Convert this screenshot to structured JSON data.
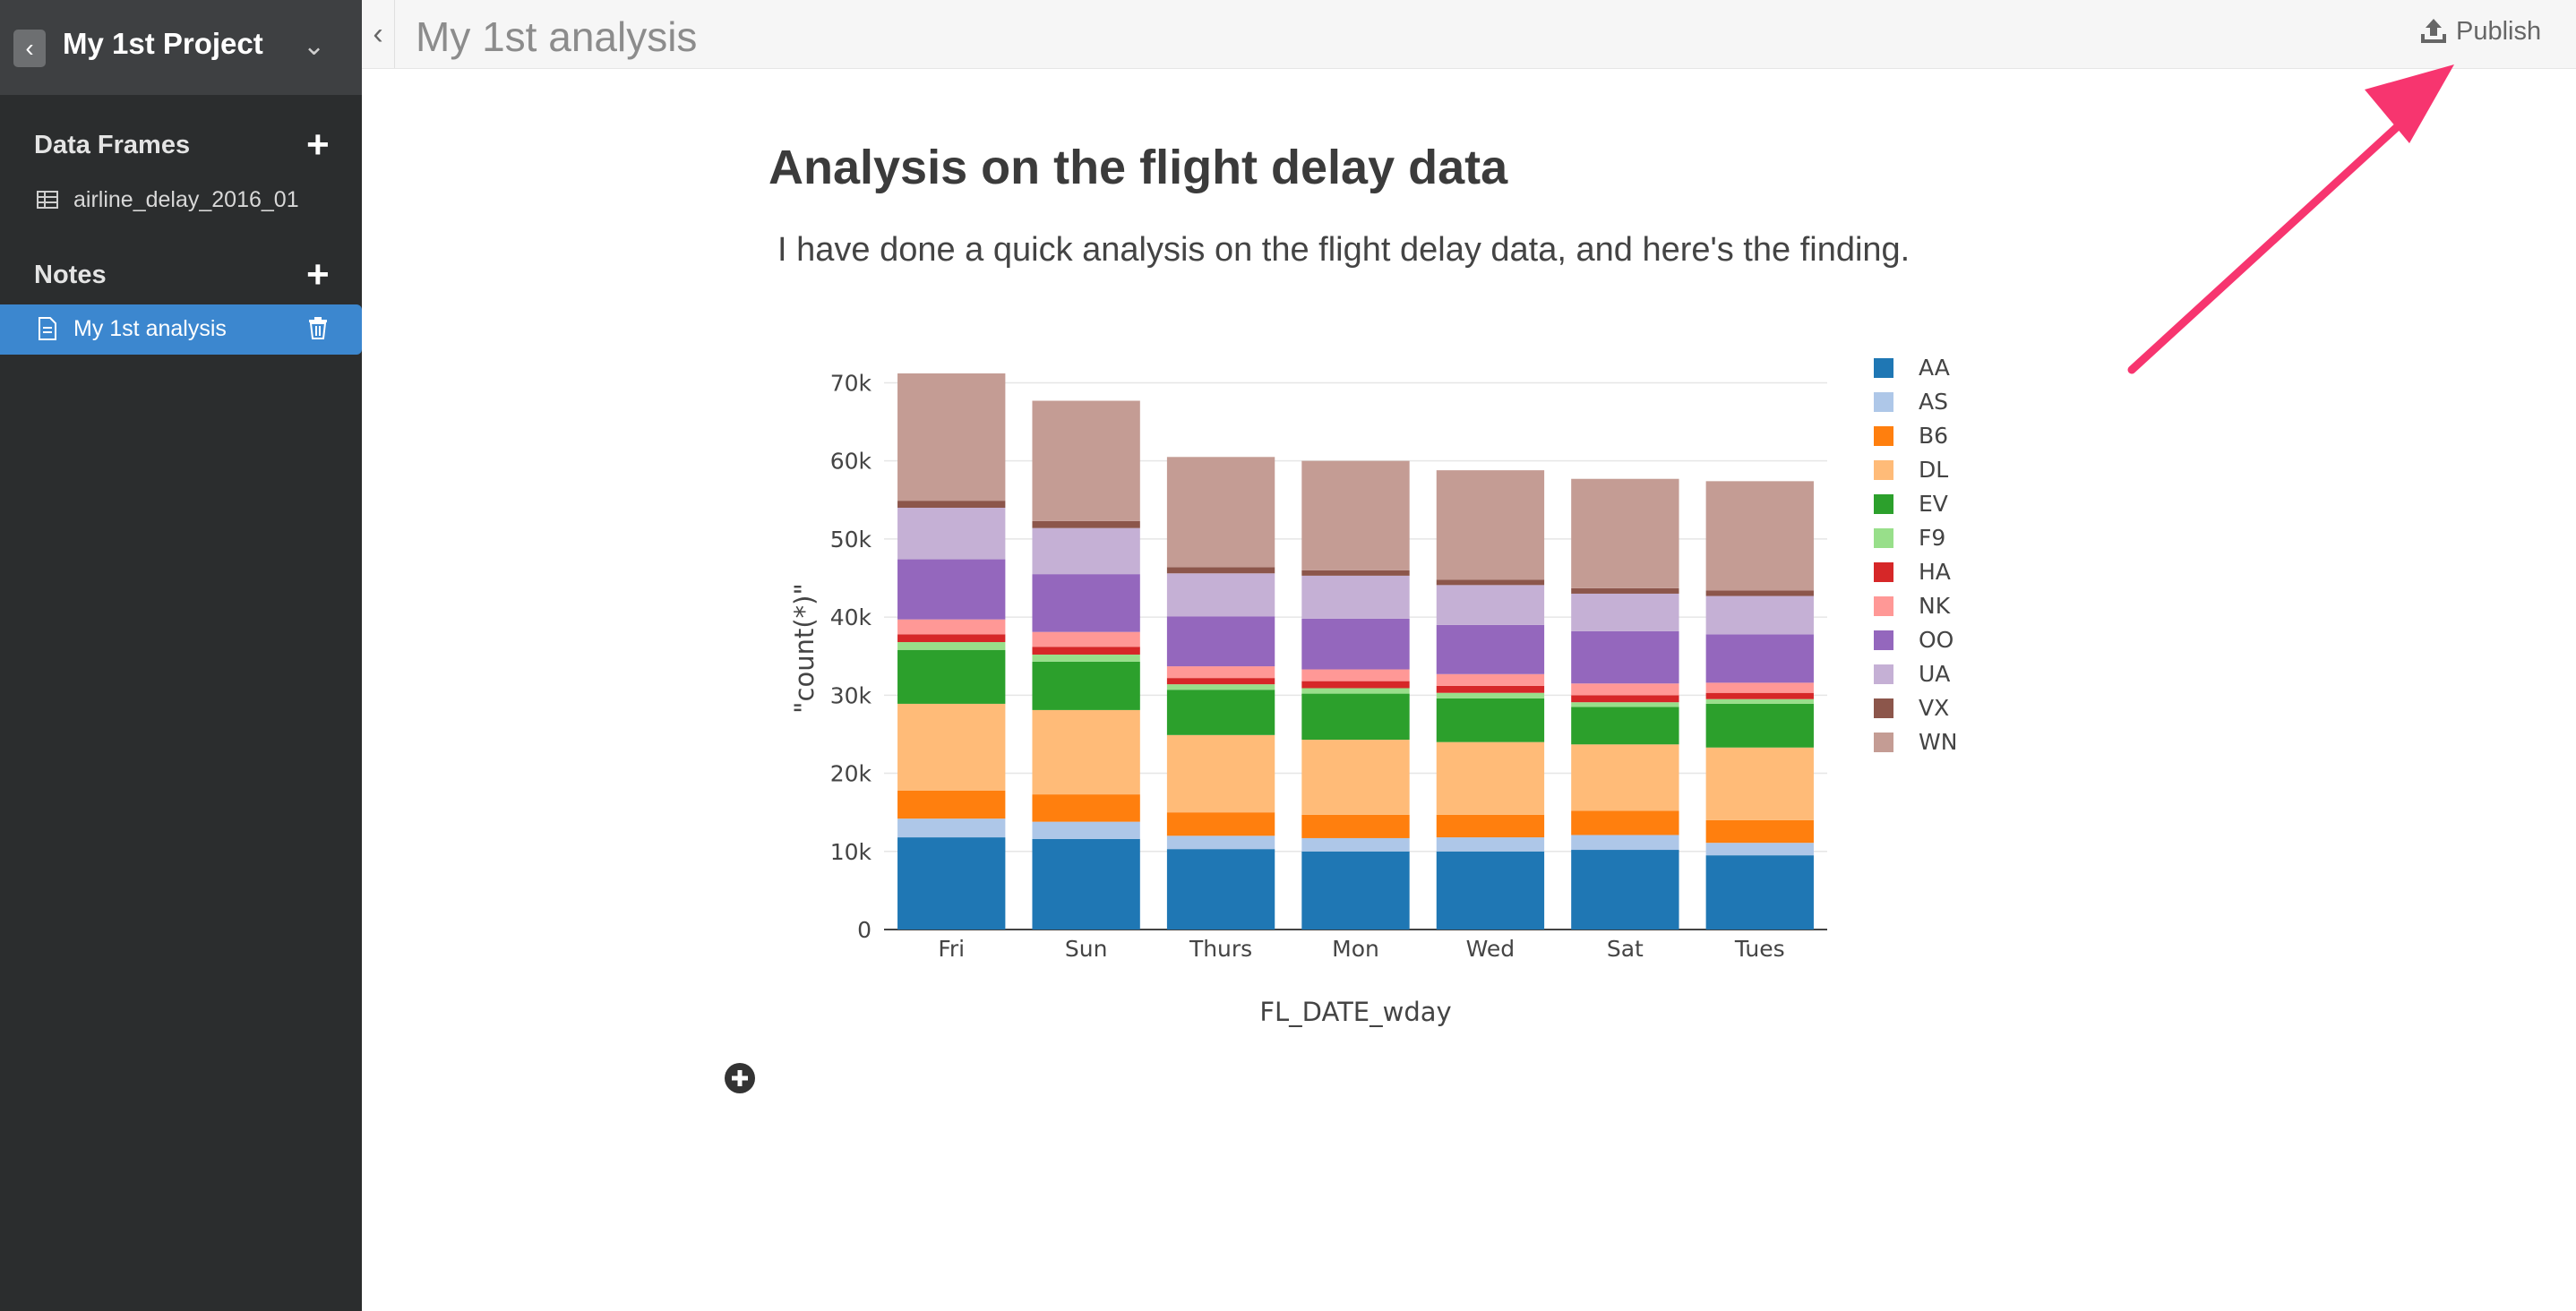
{
  "sidebar": {
    "project_title": "My 1st Project",
    "back_icon": "chevron-left-icon",
    "sections": {
      "data_frames": {
        "title": "Data Frames",
        "items": [
          {
            "label": "airline_delay_2016_01",
            "icon": "table-icon"
          }
        ]
      },
      "notes": {
        "title": "Notes",
        "items": [
          {
            "label": "My 1st analysis",
            "icon": "document-icon",
            "active": true
          }
        ]
      }
    }
  },
  "topbar": {
    "title": "My 1st analysis",
    "publish_label": "Publish"
  },
  "content": {
    "heading": "Analysis on the flight delay data",
    "paragraph": "I have done a quick analysis on the flight delay data, and here's the finding."
  },
  "colors": {
    "sidebar_bg": "#2b2d2e",
    "active_item": "#3c87cf",
    "arrow": "#f7356f"
  },
  "chart_data": {
    "type": "bar",
    "stacked": true,
    "xlabel": "FL_DATE_wday",
    "ylabel": "\"count(*)\"",
    "ylim": [
      0,
      72000
    ],
    "yticks": [
      0,
      10000,
      20000,
      30000,
      40000,
      50000,
      60000,
      70000
    ],
    "ytick_labels": [
      "0",
      "10k",
      "20k",
      "30k",
      "40k",
      "50k",
      "60k",
      "70k"
    ],
    "categories": [
      "Fri",
      "Sun",
      "Thurs",
      "Mon",
      "Wed",
      "Sat",
      "Tues"
    ],
    "legend_position": "right",
    "series": [
      {
        "name": "AA",
        "color": "#1f77b4",
        "values": [
          11800,
          11600,
          10300,
          10000,
          10000,
          10200,
          9500
        ]
      },
      {
        "name": "AS",
        "color": "#aec7e8",
        "values": [
          2400,
          2200,
          1700,
          1700,
          1800,
          1900,
          1600
        ]
      },
      {
        "name": "B6",
        "color": "#ff7f0e",
        "values": [
          3600,
          3500,
          3000,
          3000,
          2900,
          3100,
          2900
        ]
      },
      {
        "name": "DL",
        "color": "#ffbb78",
        "values": [
          11100,
          10800,
          9900,
          9600,
          9300,
          8500,
          9300
        ]
      },
      {
        "name": "EV",
        "color": "#2ca02c",
        "values": [
          6900,
          6200,
          5800,
          5900,
          5600,
          4800,
          5600
        ]
      },
      {
        "name": "F9",
        "color": "#98df8a",
        "values": [
          1000,
          900,
          700,
          700,
          700,
          600,
          600
        ]
      },
      {
        "name": "HA",
        "color": "#d62728",
        "values": [
          1000,
          1000,
          800,
          900,
          900,
          900,
          800
        ]
      },
      {
        "name": "NK",
        "color": "#ff9896",
        "values": [
          1900,
          1900,
          1500,
          1500,
          1500,
          1500,
          1300
        ]
      },
      {
        "name": "OO",
        "color": "#9467bd",
        "values": [
          7700,
          7400,
          6400,
          6500,
          6300,
          6700,
          6200
        ]
      },
      {
        "name": "UA",
        "color": "#c5b0d5",
        "values": [
          6600,
          5900,
          5500,
          5500,
          5100,
          4800,
          4900
        ]
      },
      {
        "name": "VX",
        "color": "#8c564b",
        "values": [
          900,
          900,
          800,
          700,
          700,
          700,
          700
        ]
      },
      {
        "name": "WN",
        "color": "#c49c94",
        "values": [
          16300,
          15400,
          14100,
          14000,
          14000,
          14000,
          14000
        ]
      }
    ]
  }
}
